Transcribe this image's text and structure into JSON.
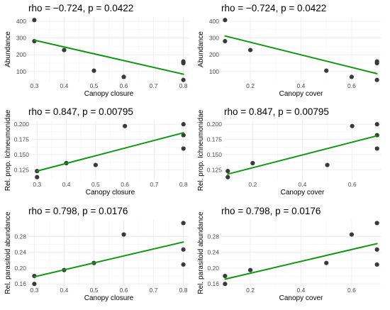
{
  "colors": {
    "fit_line": "#119611",
    "points": "#3a3a3a",
    "grid": "#ebebeb"
  },
  "chart_data": [
    {
      "type": "scatter",
      "title": "rho = −0.724, p = 0.0422",
      "xlabel": "Canopy closure",
      "ylabel": "Abundance",
      "xlim": [
        0.28,
        0.82
      ],
      "ylim": [
        40,
        425
      ],
      "xticks": [
        0.3,
        0.4,
        0.5,
        0.6,
        0.7,
        0.8
      ],
      "xtick_labels": [
        "0.3",
        "0.4",
        "0.5",
        "0.6",
        "0.7",
        "0.8"
      ],
      "yticks": [
        100,
        200,
        300,
        400
      ],
      "ytick_labels": [
        "100",
        "200",
        "300",
        "400"
      ],
      "x": [
        0.3,
        0.3,
        0.4,
        0.5,
        0.6,
        0.8,
        0.8,
        0.8
      ],
      "y": [
        407,
        281,
        228,
        105,
        68,
        160,
        150,
        50
      ],
      "fit_line": {
        "x": [
          0.3,
          0.8
        ],
        "y": [
          287,
          84
        ]
      },
      "grid": true
    },
    {
      "type": "scatter",
      "title": "rho = −0.724, p = 0.0422",
      "xlabel": "Canopy cover",
      "ylabel": "Abundance",
      "xlim": [
        0.085,
        0.715
      ],
      "ylim": [
        40,
        425
      ],
      "xticks": [
        0.2,
        0.4,
        0.6
      ],
      "xtick_labels": [
        "0.2",
        "0.4",
        "0.6"
      ],
      "yticks": [
        100,
        200,
        300,
        400
      ],
      "ytick_labels": [
        "100",
        "200",
        "300",
        "400"
      ],
      "x": [
        0.1,
        0.1,
        0.2,
        0.5,
        0.6,
        0.7,
        0.7,
        0.7
      ],
      "y": [
        407,
        281,
        228,
        105,
        68,
        160,
        150,
        50
      ],
      "fit_line": {
        "x": [
          0.1,
          0.7
        ],
        "y": [
          312,
          87
        ]
      },
      "grid": true
    },
    {
      "type": "scatter",
      "title": "rho = 0.847, p = 0.00795",
      "xlabel": "Canopy closure",
      "ylabel": "Rel. prop. Ichneumonidae",
      "xlim": [
        0.28,
        0.82
      ],
      "ylim": [
        0.108,
        0.206
      ],
      "xticks": [
        0.3,
        0.4,
        0.5,
        0.6,
        0.7,
        0.8
      ],
      "xtick_labels": [
        "0.3",
        "0.4",
        "0.5",
        "0.6",
        "0.7",
        "0.8"
      ],
      "yticks": [
        0.125,
        0.15,
        0.175,
        0.2
      ],
      "ytick_labels": [
        "0.125",
        "0.150",
        "0.175",
        "0.200"
      ],
      "x": [
        0.3,
        0.3,
        0.4,
        0.5,
        0.6,
        0.8,
        0.8,
        0.8
      ],
      "y": [
        0.123,
        0.113,
        0.136,
        0.133,
        0.197,
        0.2,
        0.182,
        0.16
      ],
      "fit_line": {
        "x": [
          0.3,
          0.8
        ],
        "y": [
          0.123,
          0.186
        ]
      },
      "grid": true
    },
    {
      "type": "scatter",
      "title": "rho = 0.847, p = 0.00795",
      "xlabel": "Canopy cover",
      "ylabel": "Rel. prop. Ichneumonidae",
      "xlim": [
        0.085,
        0.715
      ],
      "ylim": [
        0.108,
        0.206
      ],
      "xticks": [
        0.2,
        0.4,
        0.6
      ],
      "xtick_labels": [
        "0.2",
        "0.4",
        "0.6"
      ],
      "yticks": [
        0.125,
        0.15,
        0.175,
        0.2
      ],
      "ytick_labels": [
        "0.125",
        "0.150",
        "0.175",
        "0.200"
      ],
      "x": [
        0.1,
        0.1,
        0.2,
        0.5,
        0.6,
        0.7,
        0.7,
        0.7
      ],
      "y": [
        0.123,
        0.113,
        0.136,
        0.133,
        0.197,
        0.2,
        0.182,
        0.16
      ],
      "fit_line": {
        "x": [
          0.1,
          0.7
        ],
        "y": [
          0.118,
          0.181
        ]
      },
      "grid": true
    },
    {
      "type": "scatter",
      "title": "rho = 0.798, p = 0.0176",
      "xlabel": "Canopy closure",
      "ylabel": "Rel. parasitoid abundance",
      "xlim": [
        0.28,
        0.82
      ],
      "ylim": [
        0.155,
        0.322
      ],
      "xticks": [
        0.3,
        0.4,
        0.5,
        0.6,
        0.7,
        0.8
      ],
      "xtick_labels": [
        "0.3",
        "0.4",
        "0.5",
        "0.6",
        "0.7",
        "0.8"
      ],
      "yticks": [
        0.16,
        0.2,
        0.24,
        0.28
      ],
      "ytick_labels": [
        "0.16",
        "0.20",
        "0.24",
        "0.28"
      ],
      "x": [
        0.3,
        0.3,
        0.4,
        0.5,
        0.6,
        0.8,
        0.8,
        0.8
      ],
      "y": [
        0.18,
        0.16,
        0.195,
        0.213,
        0.285,
        0.314,
        0.247,
        0.209
      ],
      "fit_line": {
        "x": [
          0.3,
          0.8
        ],
        "y": [
          0.178,
          0.266
        ]
      },
      "grid": true
    },
    {
      "type": "scatter",
      "title": "rho = 0.798, p = 0.0176",
      "xlabel": "Canopy cover",
      "ylabel": "Rel. parasitoid abundance",
      "xlim": [
        0.085,
        0.715
      ],
      "ylim": [
        0.155,
        0.322
      ],
      "xticks": [
        0.2,
        0.4,
        0.6
      ],
      "xtick_labels": [
        "0.2",
        "0.4",
        "0.6"
      ],
      "yticks": [
        0.16,
        0.2,
        0.24,
        0.28
      ],
      "ytick_labels": [
        "0.16",
        "0.20",
        "0.24",
        "0.28"
      ],
      "x": [
        0.1,
        0.1,
        0.2,
        0.5,
        0.6,
        0.7,
        0.7,
        0.7
      ],
      "y": [
        0.18,
        0.16,
        0.195,
        0.213,
        0.285,
        0.314,
        0.247,
        0.209
      ],
      "fit_line": {
        "x": [
          0.1,
          0.7
        ],
        "y": [
          0.172,
          0.262
        ]
      },
      "grid": true
    }
  ]
}
